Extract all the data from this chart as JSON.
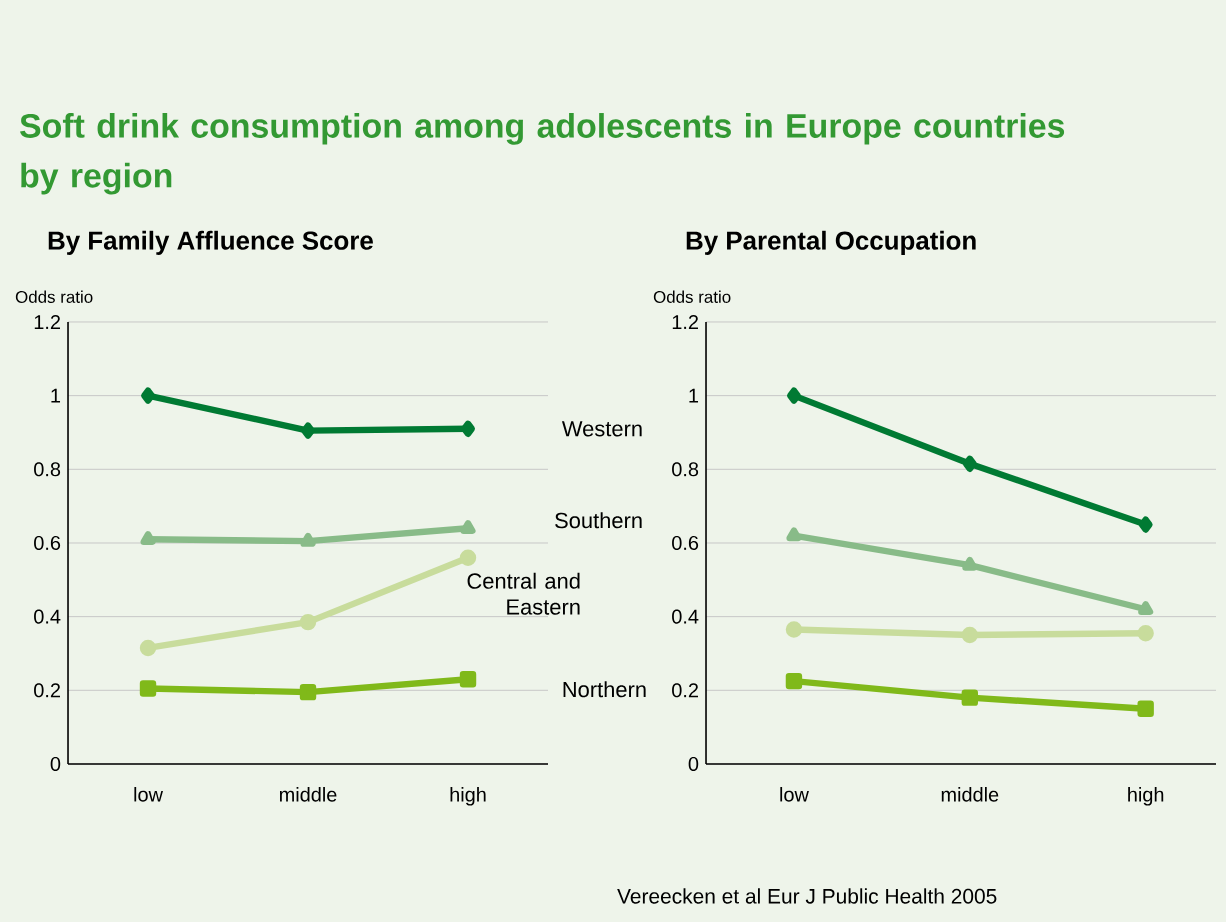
{
  "chart_data": [
    {
      "type": "line",
      "title": "Soft drink consumption among adolescents in Europe countries by region",
      "subtitle": "By Family Affluence Score",
      "ylabel": "Odds ratio",
      "categories": [
        "low",
        "middle",
        "high"
      ],
      "ylim": [
        0,
        1.2
      ],
      "yticks": [
        0,
        0.2,
        0.4,
        0.6,
        0.8,
        1,
        1.2
      ],
      "grid": "y",
      "series": [
        {
          "name": "Western",
          "color": "#007a33",
          "marker": "diamond",
          "values": [
            1.0,
            0.905,
            0.91
          ]
        },
        {
          "name": "Southern",
          "color": "#88bb88",
          "marker": "triangle",
          "values": [
            0.61,
            0.605,
            0.64
          ]
        },
        {
          "name": "Central and Eastern",
          "color": "#c8dc9c",
          "marker": "circle",
          "values": [
            0.315,
            0.385,
            0.56
          ]
        },
        {
          "name": "Northern",
          "color": "#80b91a",
          "marker": "square",
          "values": [
            0.205,
            0.195,
            0.23
          ]
        }
      ]
    },
    {
      "type": "line",
      "subtitle": "By Parental Occupation",
      "ylabel": "Odds ratio",
      "categories": [
        "low",
        "middle",
        "high"
      ],
      "ylim": [
        0,
        1.2
      ],
      "yticks": [
        0,
        0.2,
        0.4,
        0.6,
        0.8,
        1,
        1.2
      ],
      "grid": "y",
      "annotations": [
        "Vereecken et al Eur J Public Health 2005"
      ],
      "series": [
        {
          "color": "#007a33",
          "marker": "diamond",
          "values": [
            1.0,
            0.815,
            0.65
          ]
        },
        {
          "color": "#88bb88",
          "marker": "triangle",
          "values": [
            0.62,
            0.54,
            0.42
          ]
        },
        {
          "color": "#c8dc9c",
          "marker": "circle",
          "values": [
            0.365,
            0.35,
            0.355
          ]
        },
        {
          "color": "#80b91a",
          "marker": "square",
          "values": [
            0.225,
            0.18,
            0.15
          ]
        }
      ]
    }
  ]
}
